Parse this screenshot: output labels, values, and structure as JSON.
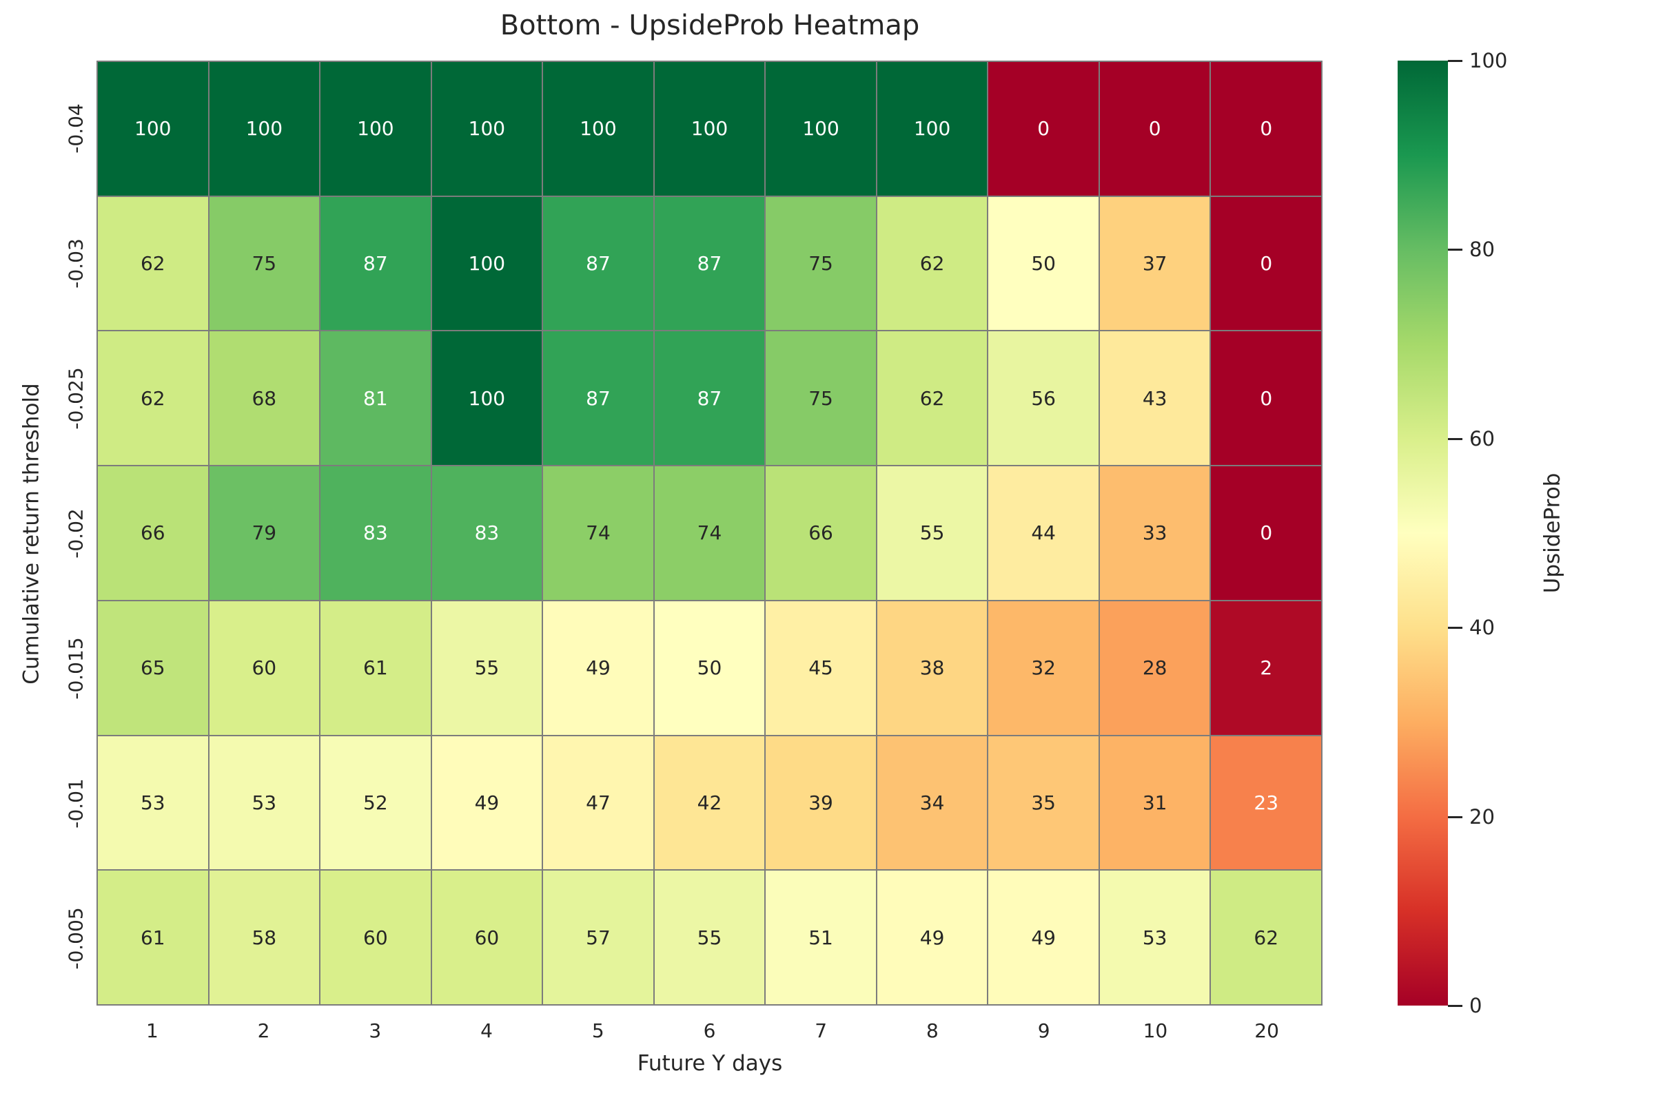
{
  "title": "Bottom - UpsideProb Heatmap",
  "chart_data": {
    "type": "heatmap",
    "title": "Bottom - UpsideProb Heatmap",
    "xlabel": "Future Y days",
    "ylabel": "Cumulative return threshold",
    "x_categories": [
      "1",
      "2",
      "3",
      "4",
      "5",
      "6",
      "7",
      "8",
      "9",
      "10",
      "20"
    ],
    "y_categories": [
      "-0.04",
      "-0.03",
      "-0.025",
      "-0.02",
      "-0.015",
      "-0.01",
      "-0.005"
    ],
    "values": [
      [
        100,
        100,
        100,
        100,
        100,
        100,
        100,
        100,
        0,
        0,
        0
      ],
      [
        62,
        75,
        87,
        100,
        87,
        87,
        75,
        62,
        50,
        37,
        0
      ],
      [
        62,
        68,
        81,
        100,
        87,
        87,
        75,
        62,
        56,
        43,
        0
      ],
      [
        66,
        79,
        83,
        83,
        74,
        74,
        66,
        55,
        44,
        33,
        0
      ],
      [
        65,
        60,
        61,
        55,
        49,
        50,
        45,
        38,
        32,
        28,
        2
      ],
      [
        53,
        53,
        52,
        49,
        47,
        42,
        39,
        34,
        35,
        31,
        23
      ],
      [
        61,
        58,
        60,
        60,
        57,
        55,
        51,
        49,
        49,
        53,
        62
      ]
    ],
    "vmin": 0,
    "vmax": 100,
    "grid_on": true,
    "colorbar": {
      "label": "UpsideProb",
      "ticks": [
        0,
        20,
        40,
        60,
        80,
        100
      ],
      "position": "right"
    },
    "colormap": {
      "name": "RdYlGn",
      "stops": [
        "#a50026",
        "#d73027",
        "#f46d43",
        "#fdae61",
        "#fee08b",
        "#ffffbf",
        "#d9ef8b",
        "#a6d96a",
        "#66bd63",
        "#1a9850",
        "#006837"
      ]
    },
    "colors": {
      "annot_dark": "#262626",
      "annot_light": "#ffffff",
      "grid_line": "#7c7c7c",
      "text": "#262626",
      "background": "#ffffff"
    }
  }
}
